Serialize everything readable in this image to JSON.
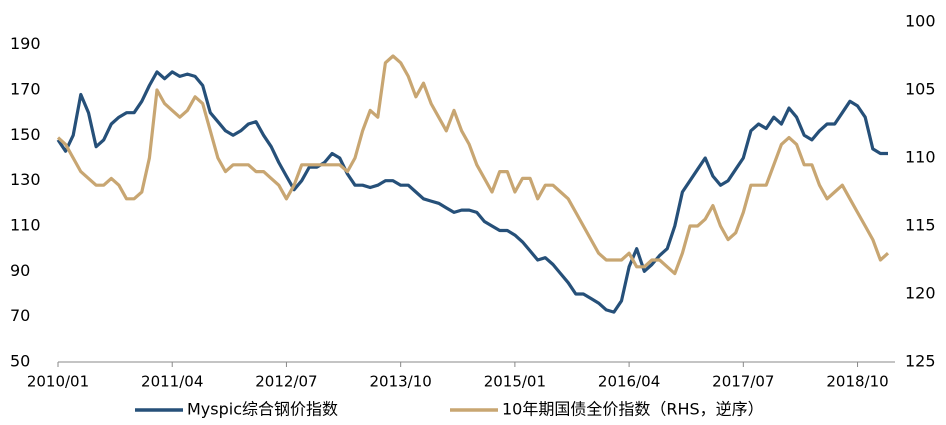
{
  "chart_data": {
    "type": "line",
    "legend": "bottom",
    "grid": false,
    "ylim": [
      50,
      200
    ],
    "yticks": [
      50,
      70,
      90,
      110,
      130,
      150,
      170,
      190
    ],
    "y2lim": [
      100,
      125
    ],
    "y2ticks": [
      100,
      105,
      110,
      115,
      120,
      125
    ],
    "y2_inverted": true,
    "xticks": [
      "2010/01",
      "2011/04",
      "2012/07",
      "2013/10",
      "2015/01",
      "2016/04",
      "2017/07",
      "2018/10"
    ],
    "x": [
      "2010/01",
      "2010/02",
      "2010/03",
      "2010/04",
      "2010/05",
      "2010/06",
      "2010/07",
      "2010/08",
      "2010/09",
      "2010/10",
      "2010/11",
      "2010/12",
      "2011/01",
      "2011/02",
      "2011/03",
      "2011/04",
      "2011/05",
      "2011/06",
      "2011/07",
      "2011/08",
      "2011/09",
      "2011/10",
      "2011/11",
      "2011/12",
      "2012/01",
      "2012/02",
      "2012/03",
      "2012/04",
      "2012/05",
      "2012/06",
      "2012/07",
      "2012/08",
      "2012/09",
      "2012/10",
      "2012/11",
      "2012/12",
      "2013/01",
      "2013/02",
      "2013/03",
      "2013/04",
      "2013/05",
      "2013/06",
      "2013/07",
      "2013/08",
      "2013/09",
      "2013/10",
      "2013/11",
      "2013/12",
      "2014/01",
      "2014/02",
      "2014/03",
      "2014/04",
      "2014/05",
      "2014/06",
      "2014/07",
      "2014/08",
      "2014/09",
      "2014/10",
      "2014/11",
      "2014/12",
      "2015/01",
      "2015/02",
      "2015/03",
      "2015/04",
      "2015/05",
      "2015/06",
      "2015/07",
      "2015/08",
      "2015/09",
      "2015/10",
      "2015/11",
      "2015/12",
      "2016/01",
      "2016/02",
      "2016/03",
      "2016/04",
      "2016/05",
      "2016/06",
      "2016/07",
      "2016/08",
      "2016/09",
      "2016/10",
      "2016/11",
      "2016/12",
      "2017/01",
      "2017/02",
      "2017/03",
      "2017/04",
      "2017/05",
      "2017/06",
      "2017/07",
      "2017/08",
      "2017/09",
      "2017/10",
      "2017/11",
      "2017/12",
      "2018/01",
      "2018/02",
      "2018/03",
      "2018/04",
      "2018/05",
      "2018/06",
      "2018/07",
      "2018/08",
      "2018/09",
      "2018/10",
      "2018/11",
      "2018/12",
      "2019/01",
      "2019/02"
    ],
    "series": [
      {
        "name": "Myspic综合钢价指数",
        "color": "#265079",
        "values": [
          148,
          143,
          150,
          168,
          160,
          145,
          148,
          155,
          158,
          160,
          160,
          165,
          172,
          178,
          175,
          178,
          176,
          177,
          176,
          172,
          160,
          156,
          152,
          150,
          152,
          155,
          156,
          150,
          145,
          138,
          132,
          126,
          130,
          136,
          136,
          138,
          142,
          140,
          133,
          128,
          128,
          127,
          128,
          130,
          130,
          128,
          128,
          125,
          122,
          121,
          120,
          118,
          116,
          117,
          117,
          116,
          112,
          110,
          108,
          108,
          106,
          103,
          99,
          95,
          96,
          93,
          89,
          85,
          80,
          80,
          78,
          76,
          73,
          72,
          77,
          92,
          100,
          90,
          93,
          97,
          100,
          110,
          125,
          130,
          135,
          140,
          132,
          128,
          130,
          135,
          140,
          152,
          155,
          153,
          158,
          155,
          162,
          158,
          150,
          148,
          152,
          155,
          155,
          160,
          165,
          163,
          158,
          144,
          142,
          142
        ]
      },
      {
        "name": "10年期国债全价指数（RHS，逆序）",
        "color": "#c8a672",
        "axis": "y2",
        "values": [
          108.5,
          109,
          110,
          111,
          111.5,
          112,
          112,
          111.5,
          112,
          113,
          113,
          112.5,
          110,
          105,
          106,
          106.5,
          107,
          106.5,
          105.5,
          106,
          108,
          110,
          111,
          110.5,
          110.5,
          110.5,
          111,
          111,
          111.5,
          112,
          113,
          112,
          110.5,
          110.5,
          110.5,
          110.5,
          110.5,
          110.5,
          111,
          110,
          108,
          106.5,
          107,
          103,
          102.5,
          103,
          104,
          105.5,
          104.5,
          106,
          107,
          108,
          106.5,
          108,
          109,
          110.5,
          111.5,
          112.5,
          111,
          111,
          112.5,
          111.5,
          111.5,
          113,
          112,
          112,
          112.5,
          113,
          114,
          115,
          116,
          117,
          117.5,
          117.5,
          117.5,
          117,
          118,
          118,
          117.5,
          117.5,
          118,
          118.5,
          117,
          115,
          115,
          114.5,
          113.5,
          115,
          116,
          115.5,
          114,
          112,
          112,
          112,
          110.5,
          109,
          108.5,
          109,
          110.5,
          110.5,
          112,
          113,
          112.5,
          112,
          113,
          114,
          115,
          116,
          117.5,
          117
        ]
      }
    ]
  }
}
